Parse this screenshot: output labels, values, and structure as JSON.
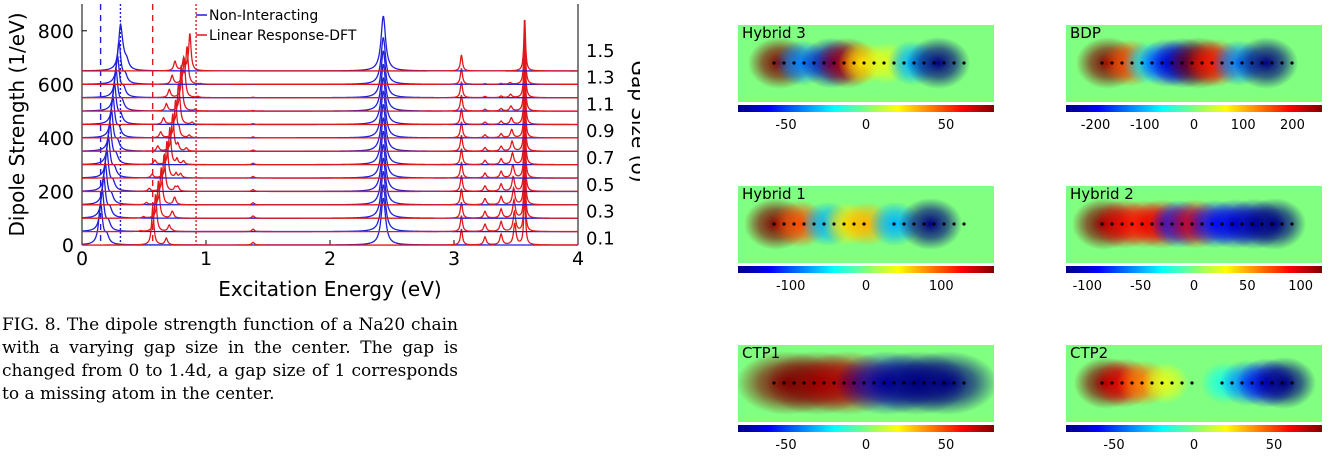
{
  "chart_data": [
    {
      "type": "line",
      "xlabel": "Excitation Energy (eV)",
      "ylabel": "Dipole Strength (1/eV)",
      "right_label": "Gap Size (δ)",
      "xlim": [
        0,
        4
      ],
      "ylim": [
        0,
        900
      ],
      "x_ticks": [
        "0",
        "1",
        "2",
        "3",
        "4"
      ],
      "y_ticks": [
        "0",
        "200",
        "400",
        "600",
        "800"
      ],
      "gap_labels": [
        "0.1",
        "0.3",
        "0.5",
        "0.7",
        "0.9",
        "1.1",
        "1.3",
        "1.5"
      ],
      "offset_step": 50,
      "num_curves": 14,
      "legend_position": "top-center",
      "series": [
        {
          "name": "Non-Interacting",
          "color": "#1f1fd8",
          "peak_centers": [
            [
              0.15,
              0.31
            ],
            2.43
          ],
          "vline": 0.15,
          "vline2": 0.31
        },
        {
          "name": "Linear Response-DFT",
          "color": "#e0191c",
          "peak_centers": [
            [
              0.57,
              0.87
            ],
            3.57
          ],
          "vline": 0.57,
          "vline2": 0.92
        }
      ]
    },
    {
      "type": "heatmap",
      "panels": [
        {
          "title": "Hybrid 3",
          "ticks": [
            "-50",
            "0",
            "50"
          ],
          "tick_values": [
            -50,
            0,
            50
          ],
          "range": [
            -80,
            80
          ]
        },
        {
          "title": "BDP",
          "ticks": [
            "-200",
            "-100",
            "0",
            "100",
            "200"
          ],
          "tick_values": [
            -200,
            -100,
            0,
            100,
            200
          ],
          "range": [
            -260,
            260
          ]
        },
        {
          "title": "Hybrid 1",
          "ticks": [
            "-100",
            "0",
            "100"
          ],
          "tick_values": [
            -100,
            0,
            100
          ],
          "range": [
            -170,
            170
          ]
        },
        {
          "title": "Hybrid 2",
          "ticks": [
            "-100",
            "-50",
            "0",
            "50",
            "100"
          ],
          "tick_values": [
            -100,
            -50,
            0,
            50,
            100
          ],
          "range": [
            -120,
            120
          ]
        },
        {
          "title": "CTP1",
          "ticks": [
            "-50",
            "0",
            "50"
          ],
          "tick_values": [
            -50,
            0,
            50
          ],
          "range": [
            -80,
            80
          ]
        },
        {
          "title": "CTP2",
          "ticks": [
            "-50",
            "0",
            "50"
          ],
          "tick_values": [
            -50,
            0,
            50
          ],
          "range": [
            -80,
            80
          ]
        }
      ]
    }
  ],
  "caption": "FIG. 8. The dipole strength function of a Na20 chain with a varying gap size in the center. The gap is changed from 0 to 1.4d, a gap size of 1 corresponds to a missing atom in the center."
}
